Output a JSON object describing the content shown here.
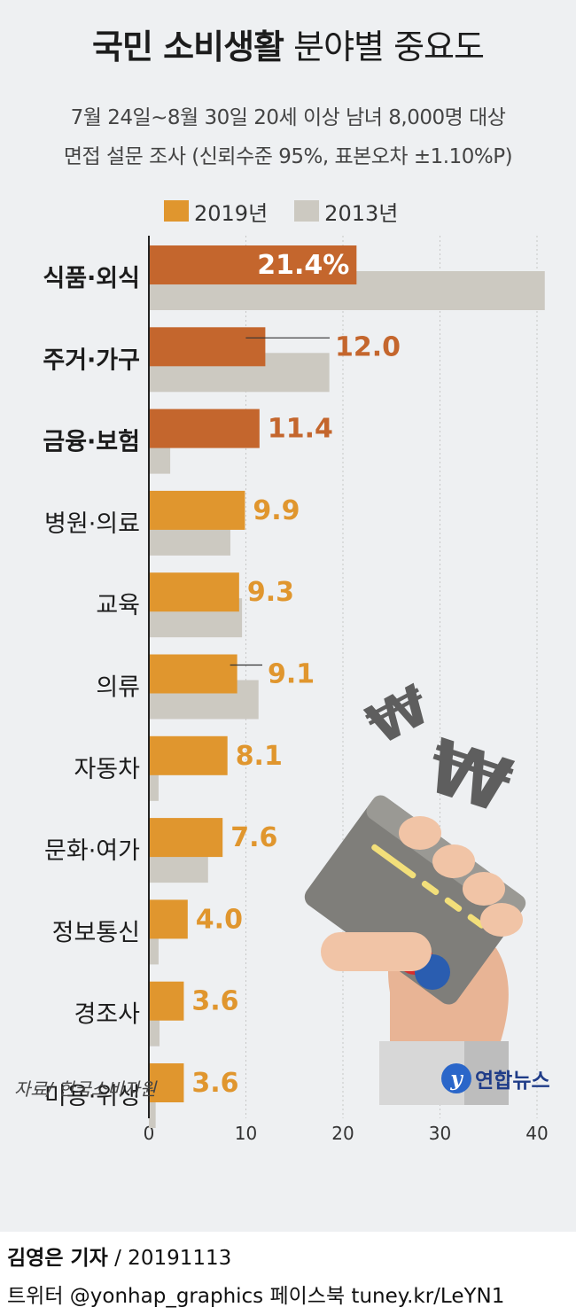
{
  "title": {
    "bold": "국민 소비생활",
    "normal": "분야별 중요도"
  },
  "subtitle": {
    "line1": "7월 24일~8월 30일 20세 이상 남녀 8,000명 대상",
    "line2": "면접 설문 조사 (신뢰수준 95%, 표본오차 ±1.10%P)"
  },
  "colors": {
    "dark_2019": "#c4662d",
    "light_2019": "#e0962e",
    "bar_2013": "#ccc9c1",
    "label_dark": "#c4662d",
    "label_light": "#e0962e",
    "background": "#eef0f2"
  },
  "chart_data": {
    "type": "bar",
    "orientation": "horizontal",
    "categories": [
      "식품·외식",
      "주거·가구",
      "금융·보험",
      "병원·의료",
      "교육",
      "의류",
      "자동차",
      "문화·여가",
      "정보통신",
      "경조사",
      "미용·위생"
    ],
    "bold_categories": [
      "식품·외식",
      "주거·가구",
      "금융·보험"
    ],
    "series": [
      {
        "name": "2019년",
        "values": [
          21.4,
          12.0,
          11.4,
          9.9,
          9.3,
          9.1,
          8.1,
          7.6,
          4.0,
          3.6,
          3.6
        ]
      },
      {
        "name": "2013년",
        "values": [
          40.8,
          18.6,
          2.2,
          8.4,
          9.6,
          11.3,
          1.0,
          6.1,
          1.0,
          1.1,
          0.7
        ]
      }
    ],
    "value_labels": [
      "21.4%",
      "12.0",
      "11.4",
      "9.9",
      "9.3",
      "9.1",
      "8.1",
      "7.6",
      "4.0",
      "3.6",
      "3.6"
    ],
    "xlim": [
      0,
      40
    ],
    "xticks": [
      0,
      10,
      20,
      30,
      40
    ],
    "grid": true,
    "legend": "top"
  },
  "source": "자료/ 한국소비자원",
  "logo_text": "연합뉴스",
  "illustration": "card-and-won-icon",
  "footer": {
    "author": "김영은 기자",
    "date": " / 20191113",
    "social": "트위터 @yonhap_graphics  페이스북 tuney.kr/LeYN1"
  }
}
